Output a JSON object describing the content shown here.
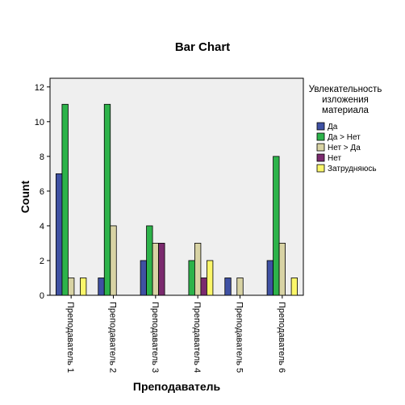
{
  "chart_data": {
    "type": "bar",
    "title": "Bar Chart",
    "xlabel": "Преподаватель",
    "ylabel": "Count",
    "ylim": [
      0,
      12.5
    ],
    "yticks": [
      0,
      2,
      4,
      6,
      8,
      10,
      12
    ],
    "grid": false,
    "legend_position": "right",
    "legend_title": [
      "Увлекательность",
      "изложения",
      "материала"
    ],
    "categories": [
      "Преподаватель 1",
      "Преподаватель 2",
      "Преподаватель 3",
      "Преподаватель 4",
      "Преподаватель 5",
      "Преподаватель 6"
    ],
    "series": [
      {
        "name": "Да",
        "color": "#3f51a3",
        "values": [
          7,
          1,
          2,
          0,
          1,
          2
        ]
      },
      {
        "name": "Да > Нет",
        "color": "#2db34a",
        "values": [
          11,
          11,
          4,
          2,
          0,
          8
        ]
      },
      {
        "name": "Нет > Да",
        "color": "#d8d3a4",
        "values": [
          1,
          4,
          3,
          3,
          1,
          3
        ]
      },
      {
        "name": "Нет",
        "color": "#7b2a6e",
        "values": [
          0,
          0,
          3,
          1,
          0,
          0
        ]
      },
      {
        "name": "Затрудняюсь",
        "color": "#fbf66a",
        "values": [
          1,
          0,
          0,
          2,
          0,
          1
        ]
      }
    ]
  }
}
